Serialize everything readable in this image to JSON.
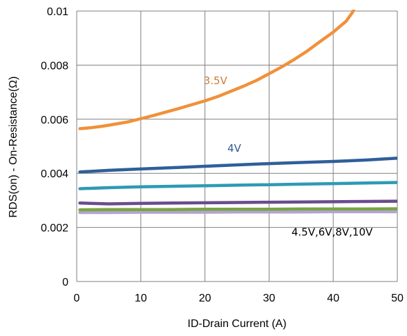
{
  "chart_data": {
    "type": "line",
    "xlabel": "ID-Drain Current (A)",
    "ylabel": "RDS(on) - On-Resistance(Ω)",
    "xlim": [
      0,
      50
    ],
    "ylim": [
      0,
      0.01
    ],
    "x_ticks": [
      "0",
      "10",
      "20",
      "30",
      "40",
      "50"
    ],
    "y_ticks": [
      "0",
      "0.002",
      "0.004",
      "0.006",
      "0.008",
      "0.01"
    ],
    "grid": true,
    "annotations": [
      {
        "text": "3.5V",
        "x": 19.8,
        "y": 0.0073,
        "color": "#d07a30"
      },
      {
        "text": "4V",
        "x": 23.5,
        "y": 0.0048,
        "color": "#2e5b8f"
      },
      {
        "text": "4.5V,6V,8V,10V",
        "x": 33.5,
        "y": 0.0017,
        "color": "#000000"
      }
    ],
    "series": [
      {
        "color": "#f0913a",
        "x": [
          0.5,
          2,
          4,
          6,
          8,
          10,
          12,
          14,
          16,
          18,
          20,
          22,
          24,
          26,
          28,
          30,
          32,
          34,
          36,
          38,
          40,
          41,
          42,
          43,
          43.5
        ],
        "y": [
          0.00565,
          0.00568,
          0.00574,
          0.00582,
          0.0059,
          0.00602,
          0.00614,
          0.00627,
          0.0064,
          0.00654,
          0.00668,
          0.00684,
          0.00703,
          0.00722,
          0.00743,
          0.00768,
          0.00794,
          0.00822,
          0.00853,
          0.00888,
          0.00922,
          0.00942,
          0.00962,
          0.00995,
          0.0102
        ]
      },
      {
        "color": "#2f5f99",
        "x": [
          0.5,
          5,
          10,
          15,
          20,
          25,
          30,
          35,
          40,
          45,
          50
        ],
        "y": [
          0.00405,
          0.00411,
          0.00416,
          0.00421,
          0.00426,
          0.00431,
          0.00436,
          0.0044,
          0.00444,
          0.00449,
          0.00456
        ]
      },
      {
        "color": "#2e9ab5",
        "x": [
          0.5,
          5,
          10,
          15,
          20,
          25,
          30,
          35,
          40,
          45,
          50
        ],
        "y": [
          0.00343,
          0.00347,
          0.0035,
          0.00352,
          0.00354,
          0.00356,
          0.00358,
          0.0036,
          0.00362,
          0.00364,
          0.00366
        ]
      },
      {
        "color": "#6b4b8d",
        "x": [
          0.5,
          5,
          10,
          15,
          20,
          25,
          30,
          35,
          40,
          45,
          50
        ],
        "y": [
          0.0029,
          0.00287,
          0.00289,
          0.0029,
          0.00291,
          0.00292,
          0.00293,
          0.00294,
          0.00295,
          0.00296,
          0.00297
        ]
      },
      {
        "color": "#77a544",
        "x": [
          0.5,
          5,
          10,
          15,
          20,
          25,
          30,
          35,
          40,
          45,
          50
        ],
        "y": [
          0.00265,
          0.00266,
          0.00266,
          0.00266,
          0.00267,
          0.00267,
          0.00267,
          0.00268,
          0.00268,
          0.00268,
          0.00269
        ]
      },
      {
        "color": "#b5a3ce",
        "x": [
          0.5,
          5,
          10,
          15,
          20,
          25,
          30,
          35,
          40,
          45,
          50
        ],
        "y": [
          0.00255,
          0.00255,
          0.00256,
          0.00256,
          0.00256,
          0.00257,
          0.00257,
          0.00257,
          0.00258,
          0.00258,
          0.00258
        ]
      }
    ]
  }
}
